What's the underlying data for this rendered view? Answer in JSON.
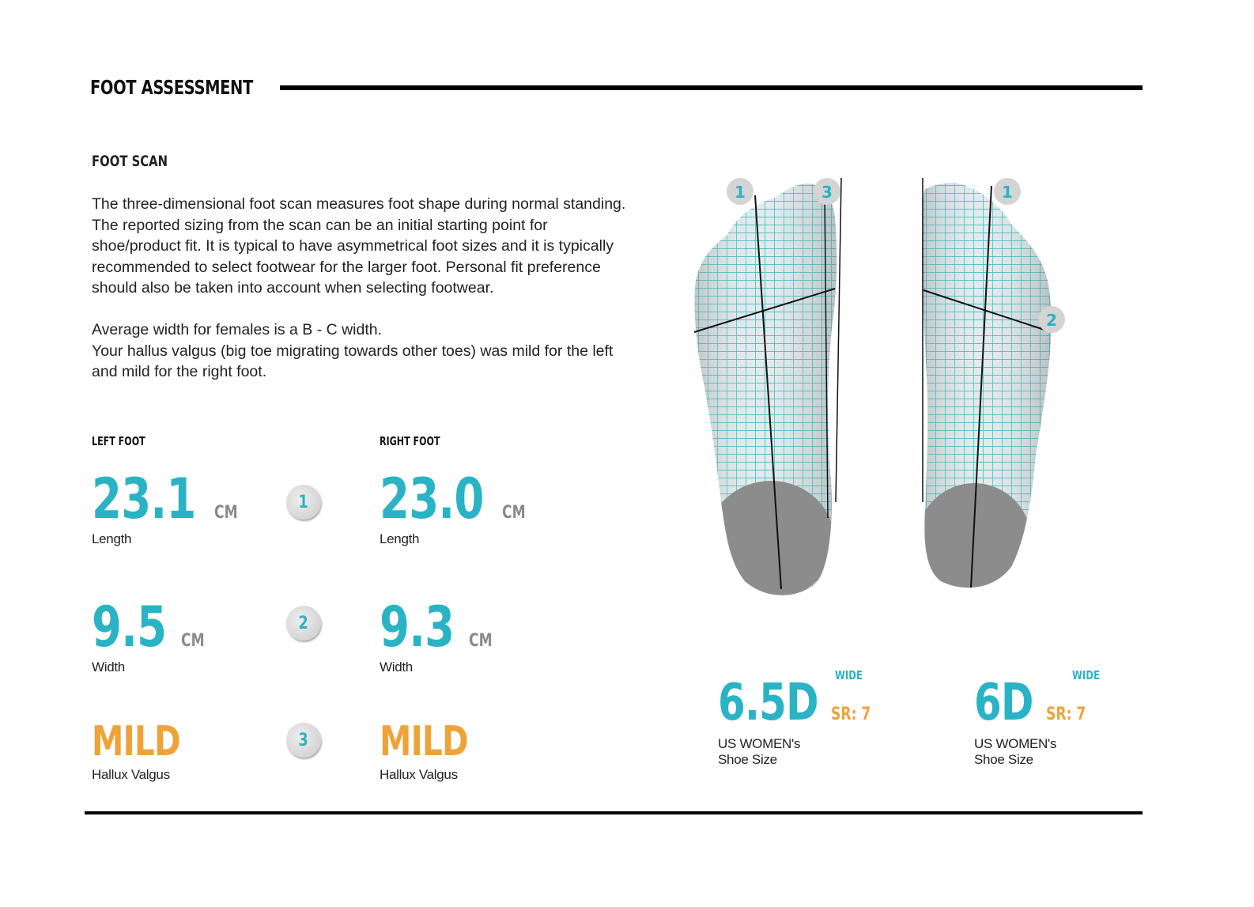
{
  "header": {
    "title": "FOOT ASSESSMENT"
  },
  "section": {
    "title": "FOOT SCAN",
    "paragraphs": [
      "The three-dimensional foot scan measures foot shape during normal standing.  The reported sizing from the scan can be an initial starting point for shoe/product fit.  It is typical to have asymmetrical foot sizes and it is typically recommended to select footwear for the larger foot.  Personal fit preference should also be taken into account when selecting footwear.",
      "Average width for females is a B - C width.",
      "Your hallus valgus (big toe migrating towards other toes) was mild for the left and mild for the right foot."
    ]
  },
  "left_foot": {
    "label": "LEFT FOOT",
    "length": {
      "value": "23.1",
      "unit": "CM",
      "label": "Length"
    },
    "width": {
      "value": "9.5",
      "unit": "CM",
      "label": "Width"
    },
    "hallux": {
      "value": "MILD",
      "label": "Hallux Valgus"
    }
  },
  "right_foot": {
    "label": "RIGHT FOOT",
    "length": {
      "value": "23.0",
      "unit": "CM",
      "label": "Length"
    },
    "width": {
      "value": "9.3",
      "unit": "CM",
      "label": "Width"
    },
    "hallux": {
      "value": "MILD",
      "label": "Hallux Valgus"
    }
  },
  "markers": {
    "one": "1",
    "two": "2",
    "three": "3"
  },
  "shoe_left": {
    "tag": "WIDE",
    "size": "6.5D",
    "sr": "SR: 7",
    "line1": "US WOMEN's",
    "line2": "Shoe Size"
  },
  "shoe_right": {
    "tag": "WIDE",
    "size": "6D",
    "sr": "SR: 7",
    "line1": "US WOMEN's",
    "line2": "Shoe Size"
  },
  "colors": {
    "accent": "#2ab3c5",
    "orange": "#eda33a",
    "unit_gray": "#8a8a8a"
  }
}
